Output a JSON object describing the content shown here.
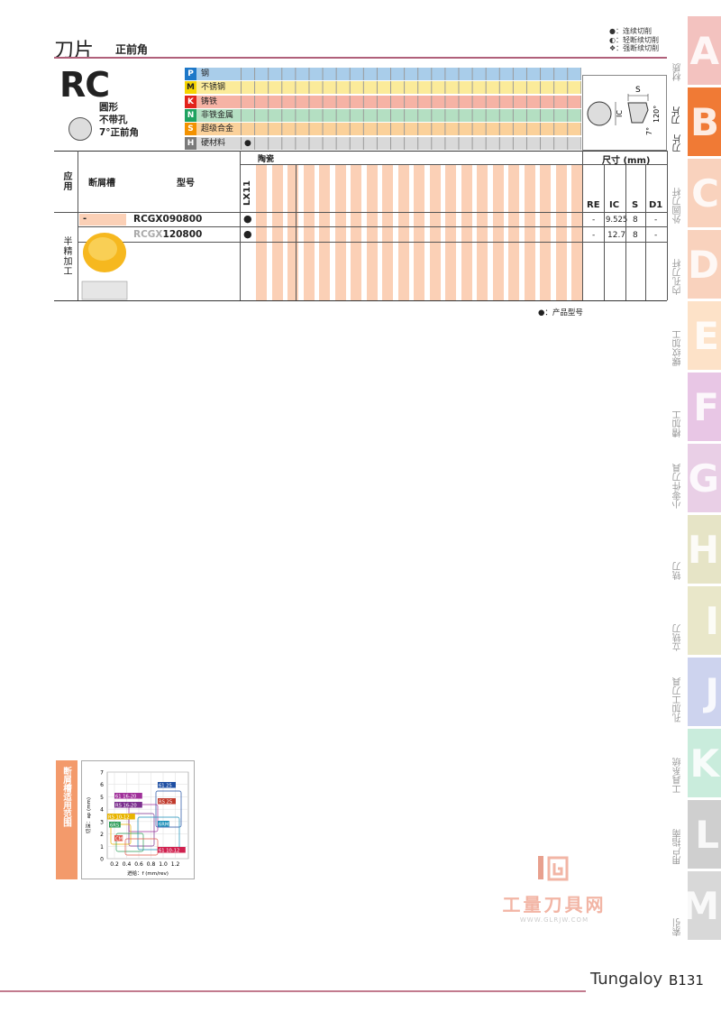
{
  "header": {
    "title": "刀片",
    "subtitle": "正前角",
    "legend": [
      "●：连续切削",
      "◐：轻断续切削",
      "❖：强断续切削"
    ]
  },
  "product": {
    "code": "RC",
    "desc": [
      "圆形",
      "不带孔",
      "7°正前角"
    ]
  },
  "materials": [
    {
      "letter": "P",
      "name": "钢",
      "letter_bg": "#1e78c8",
      "row_bg": "#a9cdea",
      "letter_color": "#fff"
    },
    {
      "letter": "M",
      "name": "不锈钢",
      "letter_bg": "#f5d400",
      "row_bg": "#fbeb9a",
      "letter_color": "#222"
    },
    {
      "letter": "K",
      "name": "铸铁",
      "letter_bg": "#e2231a",
      "row_bg": "#f6b3a5",
      "letter_color": "#fff"
    },
    {
      "letter": "N",
      "name": "非铁金属",
      "letter_bg": "#1fa260",
      "row_bg": "#b4dfc2",
      "letter_color": "#fff"
    },
    {
      "letter": "S",
      "name": "超级合金",
      "letter_bg": "#f39200",
      "row_bg": "#fbd19a",
      "letter_color": "#fff"
    },
    {
      "letter": "H",
      "name": "硬材料",
      "letter_bg": "#7a7a7a",
      "row_bg": "#d9d9d9",
      "letter_color": "#fff",
      "mark": "●"
    }
  ],
  "dims_diagram": {
    "s": "S",
    "ic": "IC",
    "angle_big": "120°",
    "angle_small": "7°"
  },
  "table": {
    "col_application": "应用",
    "col_chipbreaker": "断屑槽",
    "col_model": "型号",
    "col_ceramic": "陶瓷",
    "grade": "LX11",
    "col_dims": "尺寸 (mm)",
    "dim_cols": [
      "RE",
      "IC",
      "S",
      "D1"
    ],
    "application": "半精加工",
    "chipbreaker": "-",
    "rows": [
      {
        "model_prefix": "RCGX",
        "model_suffix": "090800",
        "mark": "●",
        "re": "-",
        "ic": "9.525",
        "s": "8",
        "d1": "-"
      },
      {
        "model_prefix": "RCGX",
        "model_suffix": "120800",
        "mark": "●",
        "re": "-",
        "ic": "12.7",
        "s": "8",
        "d1": "-"
      }
    ]
  },
  "product_legend": "●：产品型号",
  "side_tabs": [
    {
      "letter": "A",
      "name": "材质",
      "color": "#f3c2bf"
    },
    {
      "letter": "B",
      "name": "刀片",
      "color": "#f07a35"
    },
    {
      "letter": "C",
      "name": "外圆刀杆",
      "color": "#f9d2bd"
    },
    {
      "letter": "D",
      "name": "内孔刀杆",
      "color": "#f9d2bd"
    },
    {
      "letter": "E",
      "name": "螺纹加工",
      "color": "#fde2c8"
    },
    {
      "letter": "F",
      "name": "槽加工",
      "color": "#e8c6e5"
    },
    {
      "letter": "G",
      "name": "小零件刀具",
      "color": "#e9cfe6"
    },
    {
      "letter": "H",
      "name": "铣刀",
      "color": "#e6e4c6"
    },
    {
      "letter": "I",
      "name": "立铣刀",
      "color": "#e9e7c9"
    },
    {
      "letter": "J",
      "name": "孔加工刀具",
      "color": "#cdd3ee"
    },
    {
      "letter": "K",
      "name": "工具系统",
      "color": "#c9ecdc"
    },
    {
      "letter": "L",
      "name": "用户指南",
      "color": "#cfcfcf"
    },
    {
      "letter": "M",
      "name": "索引",
      "color": "#d8d8d8"
    }
  ],
  "chart": {
    "label": "断屑槽适用范围",
    "ylabel": "切深：ap (mm)",
    "xlabel": "进给：f (mm/rev)",
    "yticks": [
      "0",
      "1",
      "2",
      "3",
      "4",
      "5",
      "6",
      "7"
    ],
    "xticks": [
      "0.2",
      "0.4",
      "0.6",
      "0.8",
      "1.0",
      "1.2"
    ],
    "tags": [
      {
        "text": "61 25",
        "color": "#1e4fa3"
      },
      {
        "text": "61 16-20",
        "color": "#a0309a"
      },
      {
        "text": "RS 25",
        "color": "#c0392b"
      },
      {
        "text": "RS 16-20",
        "color": "#7b2f8e"
      },
      {
        "text": "RS 10-12",
        "color": "#e8b400"
      },
      {
        "text": "6RS",
        "color": "#2e9e5a"
      },
      {
        "text": "6RM",
        "color": "#1a8fb8"
      },
      {
        "text": "CM",
        "color": "#e2584a"
      },
      {
        "text": "61 10-12",
        "color": "#d0204e"
      }
    ]
  },
  "watermark": {
    "name": "工量刀具网",
    "url": "WWW.GLRJW.COM"
  },
  "footer": {
    "brand": "Tungaloy",
    "page": "B131"
  }
}
